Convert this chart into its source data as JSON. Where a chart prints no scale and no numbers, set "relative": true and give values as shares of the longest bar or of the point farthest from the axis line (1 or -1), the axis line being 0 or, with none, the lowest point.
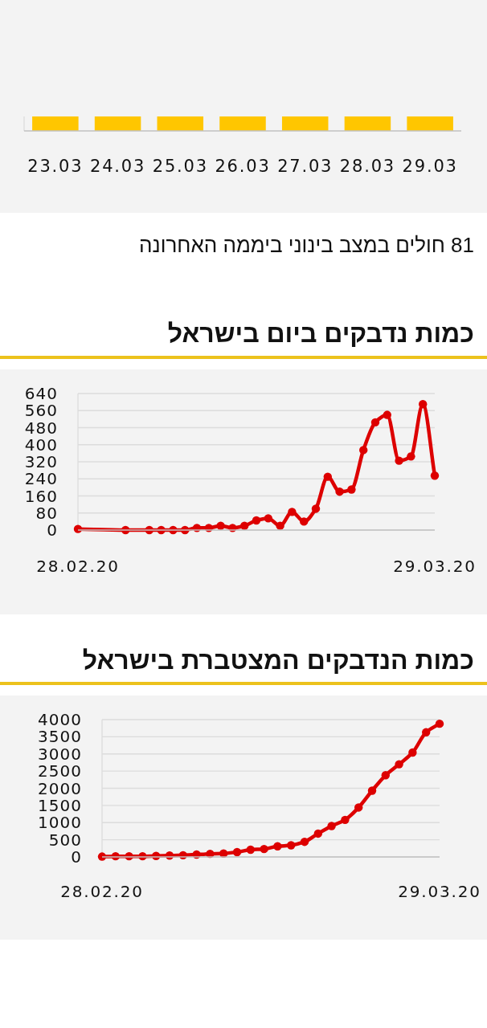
{
  "chart_data": [
    {
      "type": "bar",
      "categories": [
        "23.03",
        "24.03",
        "25.03",
        "26.03",
        "27.03",
        "28.03",
        "29.03"
      ],
      "values": [
        1,
        1,
        1,
        1,
        1,
        1,
        1
      ],
      "relative": true,
      "color": "#ffc600",
      "annotations": [
        "81 חולים במצב בינוני ביממה האחרונה"
      ]
    },
    {
      "type": "line",
      "title": "כמות נדבקים ביום בישראל",
      "x": [
        "2020-02-28",
        "2020-03-03",
        "2020-03-05",
        "2020-03-06",
        "2020-03-07",
        "2020-03-08",
        "2020-03-09",
        "2020-03-10",
        "2020-03-11",
        "2020-03-12",
        "2020-03-13",
        "2020-03-14",
        "2020-03-15",
        "2020-03-16",
        "2020-03-17",
        "2020-03-18",
        "2020-03-19",
        "2020-03-20",
        "2020-03-21",
        "2020-03-22",
        "2020-03-23",
        "2020-03-24",
        "2020-03-25",
        "2020-03-26",
        "2020-03-27",
        "2020-03-28",
        "2020-03-29"
      ],
      "values": [
        5,
        0,
        0,
        0,
        0,
        0,
        10,
        10,
        20,
        10,
        20,
        45,
        55,
        20,
        85,
        40,
        100,
        250,
        180,
        190,
        375,
        505,
        540,
        325,
        345,
        590,
        255
      ],
      "color": "#dd0000",
      "xlim": [
        "2020-02-28",
        "2020-03-29"
      ],
      "xticks": [
        {
          "value": "2020-02-28",
          "label": "28.02.20"
        },
        {
          "value": "2020-03-29",
          "label": "29.03.20"
        }
      ],
      "ylim": [
        0,
        640
      ],
      "yticks": [
        0,
        80,
        160,
        240,
        320,
        400,
        480,
        560,
        640
      ],
      "grid": "y",
      "marker": "circle"
    },
    {
      "type": "line",
      "title": "כמות הנדבקים המצטברת בישראל",
      "categories": [
        "28.02.20",
        null,
        null,
        null,
        null,
        null,
        null,
        null,
        null,
        null,
        null,
        null,
        null,
        null,
        null,
        null,
        null,
        null,
        null,
        null,
        null,
        null,
        null,
        null,
        null,
        "29.03.20"
      ],
      "values": [
        10,
        20,
        20,
        20,
        30,
        40,
        50,
        70,
        90,
        100,
        140,
        210,
        230,
        310,
        340,
        440,
        680,
        900,
        1080,
        1440,
        1930,
        2380,
        2700,
        3040,
        3630,
        3880
      ],
      "color": "#dd0000",
      "ylim": [
        0,
        4000
      ],
      "yticks": [
        0,
        500,
        1000,
        1500,
        2000,
        2500,
        3000,
        3500,
        4000
      ],
      "grid": "y",
      "marker": "circle"
    }
  ]
}
